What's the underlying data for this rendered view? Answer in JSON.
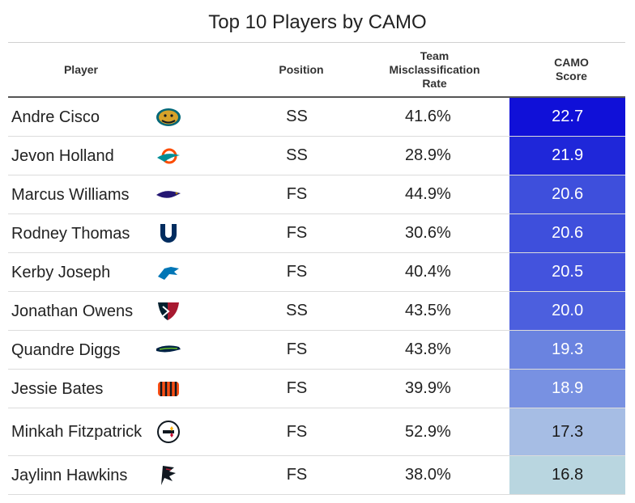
{
  "title": "Top 10 Players by CAMO",
  "columns": {
    "player": "Player",
    "position": "Position",
    "rate": "Team\nMisclassification\nRate",
    "camo": "CAMO\nScore"
  },
  "rows": [
    {
      "player": "Andre Cisco",
      "logo": "jaguars-logo",
      "position": "SS",
      "rate": "41.6%",
      "camo": "22.7",
      "camo_color": "#1010d8",
      "camo_text_color": "#ffffff"
    },
    {
      "player": "Jevon Holland",
      "logo": "dolphins-logo",
      "position": "SS",
      "rate": "28.9%",
      "camo": "21.9",
      "camo_color": "#1f27d9",
      "camo_text_color": "#ffffff"
    },
    {
      "player": "Marcus Williams",
      "logo": "ravens-logo",
      "position": "FS",
      "rate": "44.9%",
      "camo": "20.6",
      "camo_color": "#3e4fdc",
      "camo_text_color": "#ffffff"
    },
    {
      "player": "Rodney Thomas",
      "logo": "colts-logo",
      "position": "FS",
      "rate": "30.6%",
      "camo": "20.6",
      "camo_color": "#3e4fdc",
      "camo_text_color": "#ffffff"
    },
    {
      "player": "Kerby Joseph",
      "logo": "lions-logo",
      "position": "FS",
      "rate": "40.4%",
      "camo": "20.5",
      "camo_color": "#4353dd",
      "camo_text_color": "#ffffff"
    },
    {
      "player": "Jonathan Owens",
      "logo": "texans-logo",
      "position": "SS",
      "rate": "43.5%",
      "camo": "20.0",
      "camo_color": "#4c5fde",
      "camo_text_color": "#ffffff"
    },
    {
      "player": "Quandre Diggs",
      "logo": "seahawks-logo",
      "position": "FS",
      "rate": "43.8%",
      "camo": "19.3",
      "camo_color": "#6a83e0",
      "camo_text_color": "#ffffff"
    },
    {
      "player": "Jessie Bates",
      "logo": "bengals-logo",
      "position": "FS",
      "rate": "39.9%",
      "camo": "18.9",
      "camo_color": "#7891e2",
      "camo_text_color": "#ffffff"
    },
    {
      "player": "Minkah Fitzpatrick",
      "logo": "steelers-logo",
      "position": "FS",
      "rate": "52.9%",
      "camo": "17.3",
      "camo_color": "#a6bde4",
      "camo_text_color": "#1a1a1a"
    },
    {
      "player": "Jaylinn Hawkins",
      "logo": "falcons-logo",
      "position": "FS",
      "rate": "38.0%",
      "camo": "16.8",
      "camo_color": "#b9d6e0",
      "camo_text_color": "#1a1a1a"
    }
  ],
  "chart_data": {
    "type": "table",
    "title": "Top 10 Players by CAMO",
    "columns": [
      "Player",
      "Position",
      "Team Misclassification Rate",
      "CAMO Score"
    ],
    "rows": [
      [
        "Andre Cisco",
        "SS",
        "41.6%",
        22.7
      ],
      [
        "Jevon Holland",
        "SS",
        "28.9%",
        21.9
      ],
      [
        "Marcus Williams",
        "FS",
        "44.9%",
        20.6
      ],
      [
        "Rodney Thomas",
        "FS",
        "30.6%",
        20.6
      ],
      [
        "Kerby Joseph",
        "FS",
        "40.4%",
        20.5
      ],
      [
        "Jonathan Owens",
        "SS",
        "43.5%",
        20.0
      ],
      [
        "Quandre Diggs",
        "FS",
        "43.8%",
        19.3
      ],
      [
        "Jessie Bates",
        "FS",
        "39.9%",
        18.9
      ],
      [
        "Minkah Fitzpatrick",
        "FS",
        "52.9%",
        17.3
      ],
      [
        "Jaylinn Hawkins",
        "FS",
        "38.0%",
        16.8
      ]
    ]
  }
}
